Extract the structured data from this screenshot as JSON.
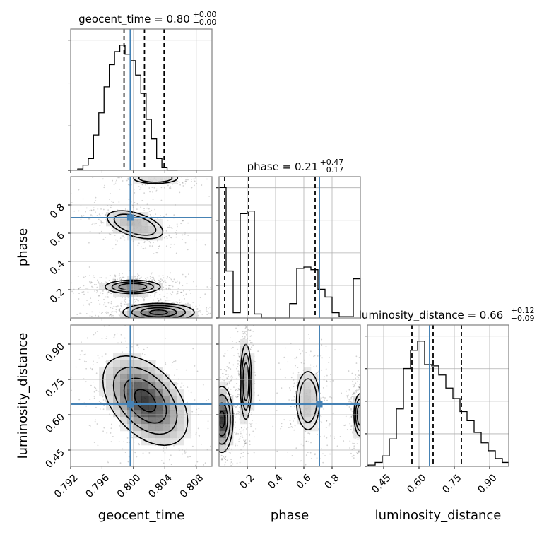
{
  "chart_data": {
    "type": "corner",
    "parameters": [
      "geocent_time",
      "phase",
      "luminosity_distance"
    ],
    "colors": {
      "truth": "#4682b4",
      "hist": "#000000",
      "grid": "#b0b0b0",
      "frame": "#808080",
      "quantile": "#000000"
    },
    "axes": {
      "geocent_time": {
        "label": "geocent_time",
        "range": [
          0.792,
          0.81
        ],
        "ticks": [
          0.792,
          0.796,
          0.8,
          0.804,
          0.808
        ],
        "tick_labels": [
          "0.792",
          "0.796",
          "0.800",
          "0.804",
          "0.808"
        ],
        "truth": 0.7996
      },
      "phase": {
        "label": "phase",
        "range": [
          0.0,
          1.0
        ],
        "ticks": [
          0.2,
          0.4,
          0.6,
          0.8
        ],
        "tick_labels": [
          "0.2",
          "0.4",
          "0.6",
          "0.8"
        ],
        "truth": 0.71
      },
      "luminosity_distance": {
        "label": "luminosity_distance",
        "range": [
          0.381,
          0.981
        ],
        "ticks": [
          0.45,
          0.6,
          0.75,
          0.9
        ],
        "tick_labels": [
          "0.45",
          "0.60",
          "0.75",
          "0.90"
        ],
        "truth": 0.645
      }
    },
    "titles": [
      {
        "param": "geocent_time",
        "main": "geocent_time = 0.80",
        "sup": "+0.00",
        "sub": "−0.00"
      },
      {
        "param": "phase",
        "main": "phase = 0.21",
        "sup": "+0.47",
        "sub": "−0.17"
      },
      {
        "param": "luminosity_distance",
        "main": "luminosity_distance = 0.66",
        "sup": "+0.12",
        "sub": "−0.09"
      }
    ],
    "histograms": {
      "geocent_time": {
        "bin_edges_start": 0.7929,
        "bin_width": 0.00067,
        "counts": [
          0.01,
          0.04,
          0.09,
          0.27,
          0.44,
          0.64,
          0.81,
          0.91,
          0.96,
          0.89,
          0.84,
          0.73,
          0.59,
          0.39,
          0.24,
          0.09,
          0.02,
          0.0,
          0.0
        ],
        "quantiles": [
          0.7988,
          0.8014,
          0.8039
        ]
      },
      "phase": {
        "bin_edges_start": 0.0,
        "bin_width": 0.05,
        "counts": [
          1.0,
          0.36,
          0.04,
          0.8,
          0.82,
          0.03,
          0.0,
          0.0,
          0.0,
          0.0,
          0.11,
          0.38,
          0.39,
          0.37,
          0.22,
          0.16,
          0.04,
          0.01,
          0.01,
          0.3
        ],
        "quantiles": [
          0.04,
          0.21,
          0.68
        ]
      },
      "luminosity_distance": {
        "bin_edges_start": 0.384,
        "bin_width": 0.03,
        "counts": [
          0.01,
          0.03,
          0.08,
          0.21,
          0.44,
          0.75,
          0.89,
          0.96,
          0.78,
          0.77,
          0.7,
          0.6,
          0.52,
          0.42,
          0.35,
          0.26,
          0.18,
          0.12,
          0.06,
          0.03
        ],
        "quantiles": [
          0.57,
          0.66,
          0.78
        ]
      }
    },
    "contours_2d": [
      {
        "x": "geocent_time",
        "y": "phase",
        "modes": [
          {
            "cx": 0.8002,
            "cy": 0.66,
            "sx": 0.0025,
            "sy": 0.07,
            "rho": -0.5,
            "weight": 0.35
          },
          {
            "cx": 0.7999,
            "cy": 0.22,
            "sx": 0.0022,
            "sy": 0.03,
            "rho": 0.0,
            "weight": 0.55
          },
          {
            "cx": 0.8032,
            "cy": 0.04,
            "sx": 0.0025,
            "sy": 0.035,
            "rho": 0.0,
            "weight": 0.8
          },
          {
            "cx": 0.8028,
            "cy": 0.99,
            "sx": 0.0022,
            "sy": 0.03,
            "rho": 0.0,
            "weight": 0.2
          }
        ]
      },
      {
        "x": "geocent_time",
        "y": "luminosity_distance",
        "modes": [
          {
            "cx": 0.8015,
            "cy": 0.66,
            "sx": 0.0027,
            "sy": 0.095,
            "rho": -0.45,
            "weight": 1.0
          }
        ]
      },
      {
        "x": "phase",
        "y": "luminosity_distance",
        "modes": [
          {
            "cx": 0.02,
            "cy": 0.58,
            "sx": 0.04,
            "sy": 0.07,
            "rho": 0.0,
            "weight": 1.0
          },
          {
            "cx": 0.19,
            "cy": 0.74,
            "sx": 0.025,
            "sy": 0.1,
            "rho": 0.0,
            "weight": 0.55
          },
          {
            "cx": 0.63,
            "cy": 0.66,
            "sx": 0.06,
            "sy": 0.09,
            "rho": 0.0,
            "weight": 0.3
          },
          {
            "cx": 1.0,
            "cy": 0.6,
            "sx": 0.03,
            "sy": 0.06,
            "rho": 0.0,
            "weight": 0.45
          }
        ]
      }
    ]
  }
}
